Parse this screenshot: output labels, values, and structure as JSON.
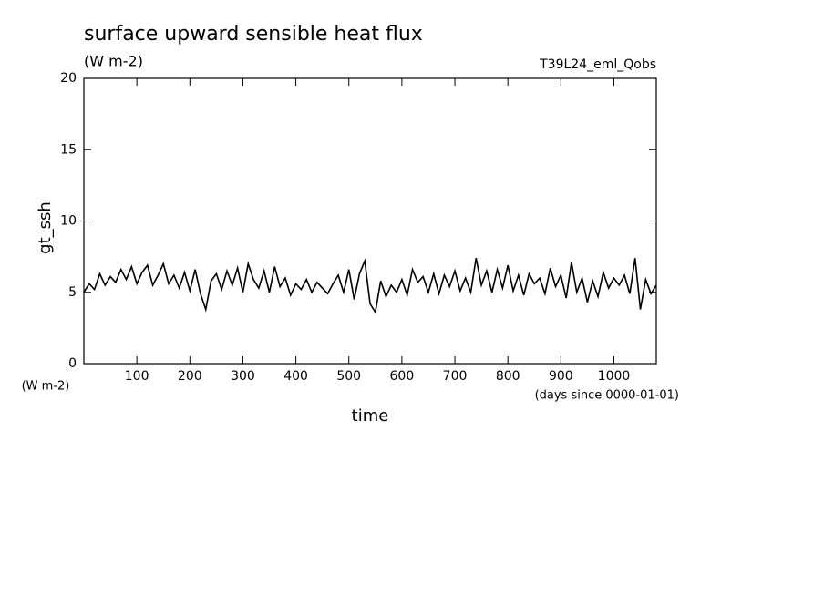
{
  "chart_data": {
    "type": "line",
    "title": "surface upward sensible heat flux",
    "subtitle": "(W m-2)",
    "annotation": "T39L24_eml_Qobs",
    "y_label": "gt_ssh",
    "y_units": "(W m-2)",
    "x_label": "time",
    "x_units": "(days since 0000-01-01)",
    "xlim": [
      0,
      1080
    ],
    "ylim": [
      0,
      20
    ],
    "xticks": [
      100,
      200,
      300,
      400,
      500,
      600,
      700,
      800,
      900,
      1000
    ],
    "yticks": [
      0,
      5,
      10,
      15,
      20
    ],
    "x": [
      0,
      10,
      20,
      30,
      40,
      50,
      60,
      70,
      80,
      90,
      100,
      110,
      120,
      130,
      140,
      150,
      160,
      170,
      180,
      190,
      200,
      210,
      220,
      230,
      240,
      250,
      260,
      270,
      280,
      290,
      300,
      310,
      320,
      330,
      340,
      350,
      360,
      370,
      380,
      390,
      400,
      410,
      420,
      430,
      440,
      450,
      460,
      470,
      480,
      490,
      500,
      510,
      520,
      530,
      540,
      550,
      560,
      570,
      580,
      590,
      600,
      610,
      620,
      630,
      640,
      650,
      660,
      670,
      680,
      690,
      700,
      710,
      720,
      730,
      740,
      750,
      760,
      770,
      780,
      790,
      800,
      810,
      820,
      830,
      840,
      850,
      860,
      870,
      880,
      890,
      900,
      910,
      920,
      930,
      940,
      950,
      960,
      970,
      980,
      990,
      1000,
      1010,
      1020,
      1030,
      1040,
      1050,
      1060,
      1070,
      1080
    ],
    "series": [
      {
        "name": "gt_ssh",
        "color": "#000000",
        "values": [
          5.0,
          5.6,
          5.2,
          6.3,
          5.5,
          6.1,
          5.7,
          6.6,
          5.9,
          6.8,
          5.6,
          6.4,
          6.9,
          5.5,
          6.2,
          7.0,
          5.6,
          6.2,
          5.3,
          6.4,
          5.1,
          6.6,
          4.9,
          3.8,
          5.8,
          6.3,
          5.2,
          6.5,
          5.5,
          6.7,
          5.0,
          7.0,
          5.9,
          5.3,
          6.5,
          5.0,
          6.8,
          5.4,
          6.0,
          4.8,
          5.6,
          5.2,
          5.9,
          5.0,
          5.7,
          5.3,
          4.9,
          5.6,
          6.2,
          5.0,
          6.6,
          4.5,
          6.3,
          7.2,
          4.2,
          3.6,
          5.8,
          4.7,
          5.5,
          5.0,
          5.9,
          4.8,
          6.6,
          5.7,
          6.1,
          5.0,
          6.3,
          4.9,
          6.2,
          5.4,
          6.5,
          5.1,
          6.0,
          5.0,
          7.4,
          5.5,
          6.5,
          5.0,
          6.6,
          5.3,
          6.9,
          5.1,
          6.2,
          4.8,
          6.3,
          5.6,
          6.0,
          4.9,
          6.7,
          5.4,
          6.2,
          4.6,
          7.1,
          5.0,
          6.0,
          4.3,
          5.8,
          4.7,
          6.4,
          5.3,
          6.0,
          5.5,
          6.2,
          4.9,
          7.4,
          3.8,
          5.9,
          4.9,
          5.5
        ]
      }
    ]
  }
}
